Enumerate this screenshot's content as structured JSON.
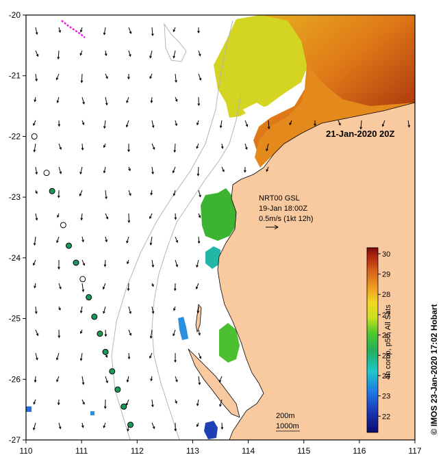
{
  "map": {
    "lon_range": [
      110,
      117
    ],
    "lat_range": [
      -27,
      -20
    ],
    "x_ticks": [
      "110",
      "111",
      "112",
      "113",
      "114",
      "115",
      "116",
      "117"
    ],
    "y_ticks": [
      "-20",
      "-21",
      "-22",
      "-23",
      "-24",
      "-25",
      "-26",
      "-27"
    ],
    "date_label": "21-Jan-2020 20Z",
    "current_legend": {
      "line1": "NRT00 GSL",
      "line2": "19-Jan 18:00Z",
      "line3": "0.5m/s (1kt 12h)"
    },
    "isobath_labels": [
      "200m",
      "1000m"
    ],
    "land_color": "#f9c9a0",
    "ocean_color": "#ffffff",
    "isobath_color": "#b0b0b0"
  },
  "colorbar": {
    "label": "4h comp, p50, All Sats",
    "range": [
      21.2,
      30.3
    ],
    "ticks": [
      "22",
      "23",
      "24",
      "25",
      "26",
      "27",
      "28",
      "29",
      "30"
    ]
  },
  "credit": "© IMOS 23-Jan-2020 17:02 Hobart",
  "drifters": {
    "open_markers": [
      {
        "lon": 110.15,
        "lat": -22.0
      },
      {
        "lon": 110.37,
        "lat": -22.6
      },
      {
        "lon": 110.67,
        "lat": -23.46
      },
      {
        "lon": 111.02,
        "lat": -24.35
      }
    ],
    "filled_markers": [
      {
        "lon": 110.47,
        "lat": -22.9
      },
      {
        "lon": 110.77,
        "lat": -23.8
      },
      {
        "lon": 110.9,
        "lat": -24.08
      },
      {
        "lon": 111.13,
        "lat": -24.65
      },
      {
        "lon": 111.23,
        "lat": -24.97
      },
      {
        "lon": 111.33,
        "lat": -25.25
      },
      {
        "lon": 111.43,
        "lat": -25.55
      },
      {
        "lon": 111.55,
        "lat": -25.87
      },
      {
        "lon": 111.65,
        "lat": -26.17
      },
      {
        "lon": 111.76,
        "lat": -26.45
      },
      {
        "lon": 111.88,
        "lat": -26.75
      }
    ],
    "filled_color": "#1a9a5a",
    "track_color": "#e020e0"
  },
  "sst_patches": [
    {
      "name": "warm-northeast",
      "color": "#c83c10"
    },
    {
      "name": "orange-band",
      "color": "#e08a20"
    },
    {
      "name": "yellow-region",
      "color": "#d8c820"
    },
    {
      "name": "green-offshore",
      "color": "#3cb030"
    },
    {
      "name": "teal-patch",
      "color": "#20b8a8"
    },
    {
      "name": "blue-patch",
      "color": "#2080e0"
    }
  ]
}
